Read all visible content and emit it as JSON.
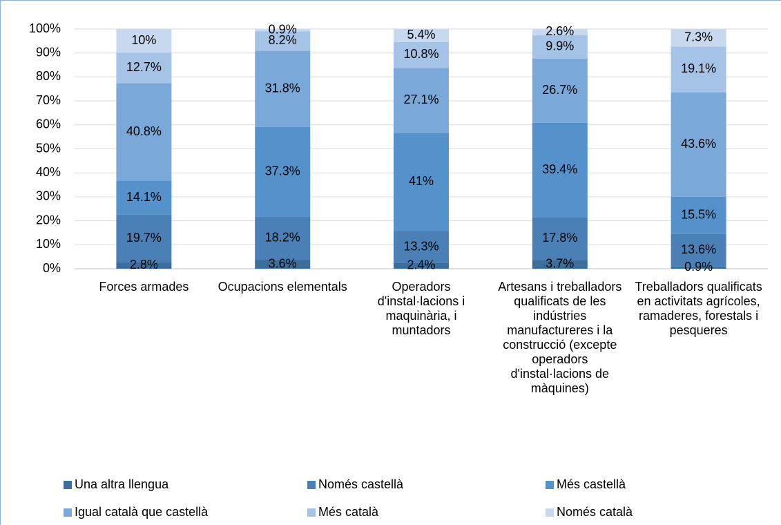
{
  "chart_data": {
    "type": "stacked_bar",
    "categories": [
      "Forces armades",
      "Ocupacions elementals",
      "Operadors d'instal·lacions i maquinària, i muntadors",
      "Artesans i treballadors qualificats de les indústries manufactureres i la construcció (excepte operadors d'instal·lacions de màquines)",
      "Treballadors qualificats en activitats agrícoles, ramaderes, forestals i pesqueres"
    ],
    "series": [
      {
        "name": "Una altra llengua",
        "color": "#3b6e9c",
        "values": [
          2.8,
          3.6,
          2.4,
          3.7,
          0.9
        ],
        "value_labels": [
          "2.8%",
          "3.6%",
          "2.4%",
          "3.7%",
          "0.9%"
        ]
      },
      {
        "name": "Només castellà",
        "color": "#4a80b6",
        "values": [
          19.7,
          18.2,
          13.3,
          17.8,
          13.6
        ],
        "value_labels": [
          "19.7%",
          "18.2%",
          "13.3%",
          "17.8%",
          "13.6%"
        ]
      },
      {
        "name": "Més castellà",
        "color": "#5592cb",
        "values": [
          14.1,
          37.3,
          41,
          39.4,
          15.5
        ],
        "value_labels": [
          "14.1%",
          "37.3%",
          "41%",
          "39.4%",
          "15.5%"
        ]
      },
      {
        "name": "Igual català que castellà",
        "color": "#7aa9d9",
        "values": [
          40.8,
          31.8,
          27.1,
          26.7,
          43.6
        ],
        "value_labels": [
          "40.8%",
          "31.8%",
          "27.1%",
          "26.7%",
          "43.6%"
        ]
      },
      {
        "name": "Més català",
        "color": "#a5c3e6",
        "values": [
          12.7,
          8.2,
          10.8,
          9.9,
          19.1
        ],
        "value_labels": [
          "12.7%",
          "8.2%",
          "10.8%",
          "9.9%",
          "19.1%"
        ]
      },
      {
        "name": "Només català",
        "color": "#c8d9ef",
        "values": [
          10,
          0.9,
          5.4,
          2.6,
          7.3
        ],
        "value_labels": [
          "10%",
          "0.9%",
          "5.4%",
          "2.6%",
          "7.3%"
        ]
      }
    ],
    "ylim": [
      0,
      100
    ],
    "yticks": [
      {
        "value": 0,
        "label": "0%"
      },
      {
        "value": 10,
        "label": "10%"
      },
      {
        "value": 20,
        "label": "20%"
      },
      {
        "value": 30,
        "label": "30%"
      },
      {
        "value": 40,
        "label": "40%"
      },
      {
        "value": 50,
        "label": "50%"
      },
      {
        "value": 60,
        "label": "60%"
      },
      {
        "value": 70,
        "label": "70%"
      },
      {
        "value": 80,
        "label": "80%"
      },
      {
        "value": 90,
        "label": "90%"
      },
      {
        "value": 100,
        "label": "100%"
      }
    ],
    "grid": true,
    "legend": "bottom"
  }
}
